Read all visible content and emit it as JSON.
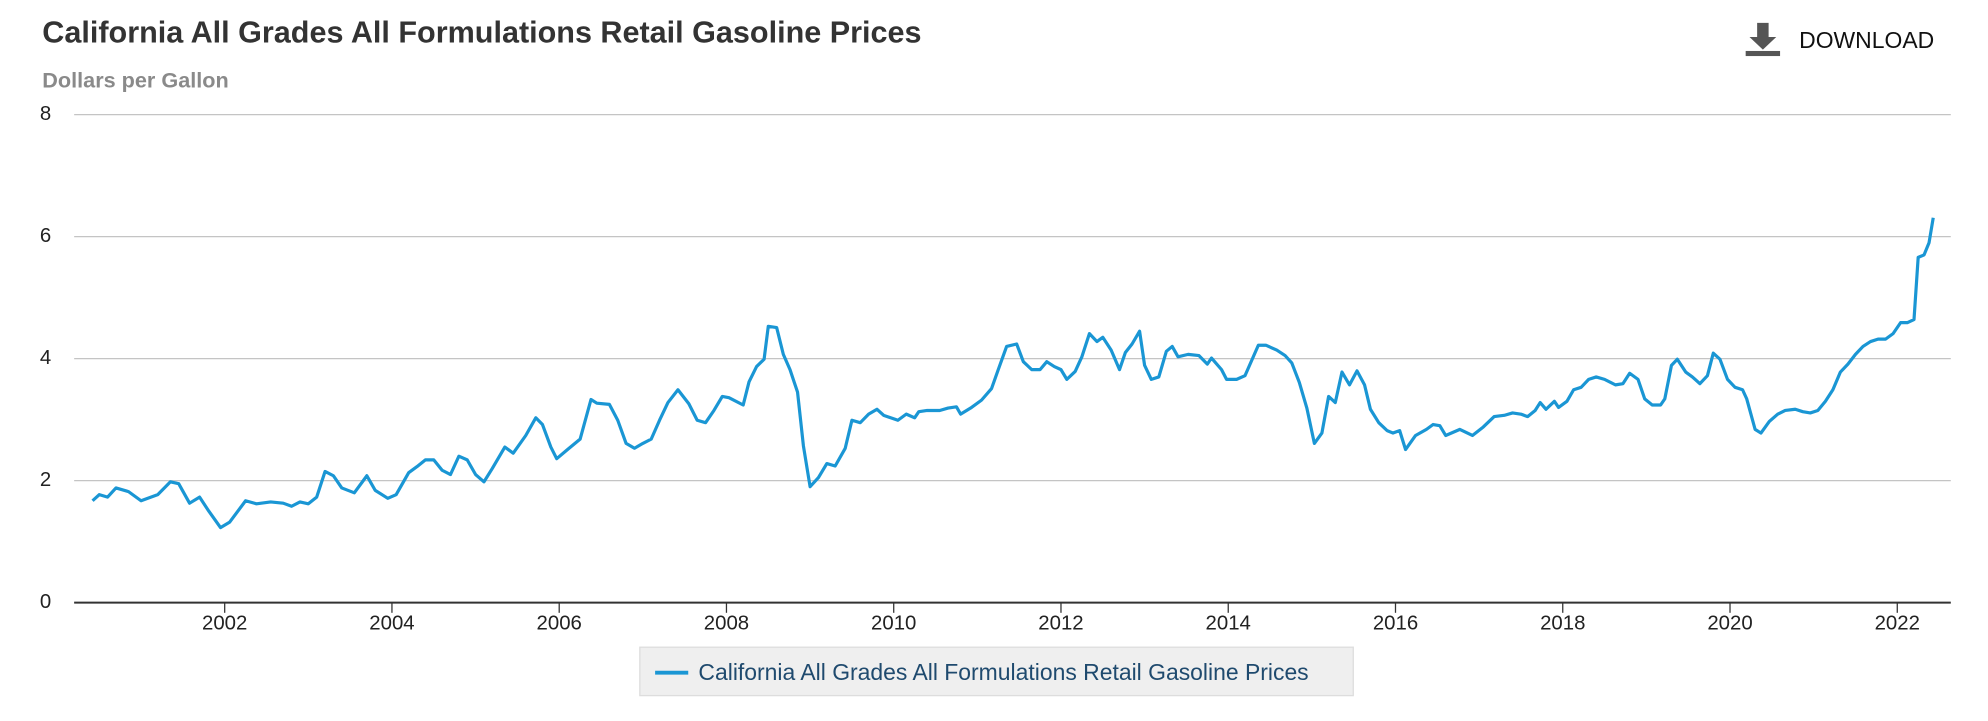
{
  "chart_data": {
    "type": "line",
    "title": "California All Grades All Formulations Retail Gasoline Prices",
    "subtitle": "Dollars per Gallon",
    "download_label": "DOWNLOAD",
    "x": [
      2000.42,
      2000.5,
      2000.6,
      2000.7,
      2000.85,
      2001.0,
      2001.2,
      2001.35,
      2001.45,
      2001.58,
      2001.7,
      2001.8,
      2001.95,
      2002.06,
      2002.25,
      2002.38,
      2002.55,
      2002.7,
      2002.8,
      2002.9,
      2003.0,
      2003.1,
      2003.2,
      2003.3,
      2003.4,
      2003.55,
      2003.7,
      2003.8,
      2003.95,
      2004.05,
      2004.2,
      2004.3,
      2004.4,
      2004.5,
      2004.6,
      2004.7,
      2004.8,
      2004.9,
      2005.0,
      2005.1,
      2005.2,
      2005.35,
      2005.45,
      2005.6,
      2005.72,
      2005.8,
      2005.9,
      2005.97,
      2006.1,
      2006.25,
      2006.38,
      2006.45,
      2006.6,
      2006.7,
      2006.8,
      2006.9,
      2007.0,
      2007.1,
      2007.2,
      2007.3,
      2007.42,
      2007.55,
      2007.65,
      2007.75,
      2007.85,
      2007.95,
      2008.03,
      2008.2,
      2008.27,
      2008.36,
      2008.45,
      2008.5,
      2008.6,
      2008.68,
      2008.76,
      2008.85,
      2008.92,
      2009.0,
      2009.1,
      2009.2,
      2009.3,
      2009.42,
      2009.5,
      2009.6,
      2009.7,
      2009.8,
      2009.88,
      2010.05,
      2010.15,
      2010.25,
      2010.3,
      2010.4,
      2010.55,
      2010.65,
      2010.75,
      2010.8,
      2010.92,
      2011.05,
      2011.17,
      2011.25,
      2011.35,
      2011.47,
      2011.55,
      2011.65,
      2011.75,
      2011.83,
      2011.92,
      2012.0,
      2012.07,
      2012.17,
      2012.25,
      2012.34,
      2012.43,
      2012.5,
      2012.6,
      2012.7,
      2012.77,
      2012.85,
      2012.94,
      2013.0,
      2013.08,
      2013.17,
      2013.26,
      2013.33,
      2013.4,
      2013.52,
      2013.65,
      2013.75,
      2013.8,
      2013.92,
      2013.98,
      2014.1,
      2014.2,
      2014.28,
      2014.36,
      2014.45,
      2014.58,
      2014.68,
      2014.76,
      2014.85,
      2014.94,
      2015.03,
      2015.12,
      2015.2,
      2015.28,
      2015.36,
      2015.45,
      2015.54,
      2015.63,
      2015.7,
      2015.8,
      2015.9,
      2015.97,
      2016.05,
      2016.12,
      2016.24,
      2016.37,
      2016.45,
      2016.53,
      2016.6,
      2016.77,
      2016.92,
      2017.05,
      2017.18,
      2017.3,
      2017.4,
      2017.5,
      2017.58,
      2017.67,
      2017.73,
      2017.8,
      2017.9,
      2017.95,
      2018.05,
      2018.13,
      2018.22,
      2018.31,
      2018.4,
      2018.5,
      2018.63,
      2018.72,
      2018.8,
      2018.9,
      2018.98,
      2019.07,
      2019.17,
      2019.22,
      2019.3,
      2019.37,
      2019.47,
      2019.55,
      2019.64,
      2019.73,
      2019.8,
      2019.88,
      2019.97,
      2020.06,
      2020.15,
      2020.2,
      2020.3,
      2020.37,
      2020.47,
      2020.57,
      2020.66,
      2020.78,
      2020.87,
      2020.96,
      2021.05,
      2021.14,
      2021.23,
      2021.32,
      2021.41,
      2021.5,
      2021.59,
      2021.68,
      2021.77,
      2021.86,
      2021.95,
      2022.04,
      2022.12,
      2022.2,
      2022.25,
      2022.32,
      2022.38,
      2022.43
    ],
    "series": [
      {
        "name": "California All Grades All Formulations Retail Gasoline Prices",
        "color": "#1a96d4",
        "values": [
          1.67,
          1.77,
          1.73,
          1.88,
          1.82,
          1.67,
          1.77,
          1.98,
          1.95,
          1.63,
          1.73,
          1.52,
          1.23,
          1.32,
          1.67,
          1.62,
          1.65,
          1.63,
          1.58,
          1.65,
          1.62,
          1.73,
          2.15,
          2.08,
          1.88,
          1.8,
          2.08,
          1.84,
          1.71,
          1.77,
          2.13,
          2.23,
          2.34,
          2.34,
          2.17,
          2.1,
          2.4,
          2.34,
          2.1,
          1.98,
          2.2,
          2.55,
          2.45,
          2.74,
          3.03,
          2.92,
          2.55,
          2.36,
          2.51,
          2.68,
          3.33,
          3.27,
          3.25,
          2.99,
          2.61,
          2.53,
          2.61,
          2.68,
          2.99,
          3.28,
          3.49,
          3.26,
          2.99,
          2.95,
          3.15,
          3.38,
          3.36,
          3.24,
          3.62,
          3.87,
          3.99,
          4.53,
          4.51,
          4.07,
          3.82,
          3.45,
          2.57,
          1.9,
          2.05,
          2.28,
          2.24,
          2.53,
          2.99,
          2.95,
          3.09,
          3.17,
          3.07,
          2.99,
          3.09,
          3.03,
          3.13,
          3.15,
          3.15,
          3.19,
          3.21,
          3.09,
          3.19,
          3.32,
          3.51,
          3.82,
          4.2,
          4.24,
          3.95,
          3.82,
          3.82,
          3.95,
          3.87,
          3.82,
          3.66,
          3.79,
          4.03,
          4.41,
          4.28,
          4.35,
          4.14,
          3.82,
          4.1,
          4.24,
          4.45,
          3.89,
          3.66,
          3.7,
          4.12,
          4.2,
          4.03,
          4.07,
          4.05,
          3.91,
          4.01,
          3.82,
          3.66,
          3.66,
          3.72,
          3.97,
          4.22,
          4.22,
          4.14,
          4.05,
          3.93,
          3.61,
          3.19,
          2.61,
          2.78,
          3.38,
          3.28,
          3.78,
          3.57,
          3.8,
          3.57,
          3.17,
          2.95,
          2.82,
          2.78,
          2.82,
          2.51,
          2.74,
          2.84,
          2.92,
          2.9,
          2.74,
          2.84,
          2.74,
          2.88,
          3.05,
          3.07,
          3.11,
          3.09,
          3.05,
          3.15,
          3.28,
          3.17,
          3.3,
          3.2,
          3.3,
          3.49,
          3.53,
          3.66,
          3.7,
          3.66,
          3.57,
          3.59,
          3.76,
          3.66,
          3.34,
          3.24,
          3.24,
          3.34,
          3.89,
          3.99,
          3.78,
          3.7,
          3.59,
          3.72,
          4.09,
          3.99,
          3.66,
          3.53,
          3.49,
          3.34,
          2.84,
          2.78,
          2.97,
          3.09,
          3.15,
          3.17,
          3.13,
          3.11,
          3.15,
          3.3,
          3.49,
          3.78,
          3.91,
          4.07,
          4.2,
          4.28,
          4.32,
          4.32,
          4.41,
          4.59,
          4.59,
          4.64,
          5.66,
          5.7,
          5.9,
          6.31
        ]
      }
    ],
    "xlim": [
      2000.2,
      2022.64
    ],
    "xticks": [
      2002,
      2004,
      2006,
      2008,
      2010,
      2012,
      2014,
      2016,
      2018,
      2020,
      2022
    ],
    "ylim": [
      0,
      8
    ],
    "yticks": [
      0,
      2,
      4,
      6,
      8
    ],
    "grid": true
  }
}
